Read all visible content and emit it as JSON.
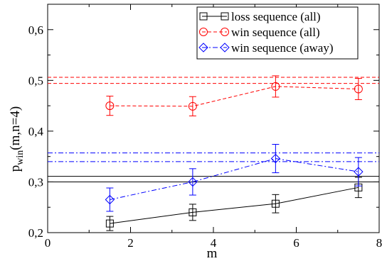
{
  "chart_data": {
    "type": "scatter",
    "title": "",
    "xlabel": "m",
    "ylabel_main": "p",
    "ylabel_sub": "win",
    "ylabel_rest": "(m,n=4)",
    "xlim": [
      0,
      8
    ],
    "ylim": [
      0.2,
      0.65
    ],
    "x_ticks": [
      0,
      2,
      4,
      6,
      8
    ],
    "x_tick_labels": [
      "0",
      "2",
      "4",
      "6",
      "8"
    ],
    "y_ticks": [
      0.2,
      0.3,
      0.4,
      0.5,
      0.6
    ],
    "y_tick_labels": [
      "0,2",
      "0,3",
      "0,4",
      "0,5",
      "0,6"
    ],
    "grid": false,
    "legend_position": "top-right",
    "series": [
      {
        "name": "loss sequence (all)",
        "color": "#000000",
        "marker": "square",
        "line": "solid",
        "x": [
          1.5,
          3.5,
          5.5,
          7.5
        ],
        "y": [
          0.218,
          0.24,
          0.257,
          0.289
        ],
        "err": [
          0.014,
          0.016,
          0.018,
          0.02
        ]
      },
      {
        "name": "win sequence (all)",
        "color": "#ff0000",
        "marker": "circle",
        "line": "dashed",
        "x": [
          1.5,
          3.5,
          5.5,
          7.5
        ],
        "y": [
          0.45,
          0.449,
          0.488,
          0.483
        ],
        "err": [
          0.019,
          0.019,
          0.021,
          0.021
        ]
      },
      {
        "name": "win sequence (away)",
        "color": "#0000ff",
        "marker": "diamond",
        "line": "dashdot",
        "x": [
          1.5,
          3.5,
          5.5,
          7.5
        ],
        "y": [
          0.265,
          0.3,
          0.346,
          0.32
        ],
        "err": [
          0.023,
          0.026,
          0.028,
          0.028
        ]
      }
    ],
    "reference_lines": [
      {
        "y": 0.311,
        "color": "#000000",
        "style": "solid"
      },
      {
        "y": 0.3,
        "color": "#000000",
        "style": "solid"
      },
      {
        "y": 0.506,
        "color": "#ff0000",
        "style": "dashed"
      },
      {
        "y": 0.494,
        "color": "#ff0000",
        "style": "dashed"
      },
      {
        "y": 0.357,
        "color": "#0000ff",
        "style": "dashdot"
      },
      {
        "y": 0.34,
        "color": "#0000ff",
        "style": "dashdot"
      }
    ]
  }
}
